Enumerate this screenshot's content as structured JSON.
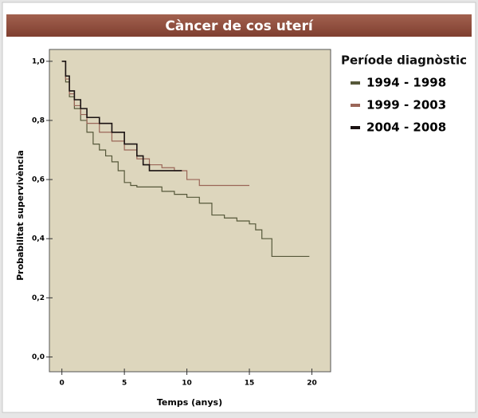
{
  "chart_data": {
    "type": "survival-step",
    "title": "Càncer de cos uterí",
    "xlabel": "Temps (anys)",
    "ylabel": "Probabilitat supervivència",
    "legend_title": "Període diagnòstic",
    "background": "#ddd6bd",
    "xlim": [
      -1,
      21.5
    ],
    "xticks": [
      0,
      5,
      10,
      15,
      20
    ],
    "ylim": [
      -0.05,
      1.04
    ],
    "yticks": [
      {
        "value": 0,
        "label": "0,0"
      },
      {
        "value": 0.2,
        "label": "0,2"
      },
      {
        "value": 0.4,
        "label": "0,4"
      },
      {
        "value": 0.6,
        "label": "0,6"
      },
      {
        "value": 0.8,
        "label": "0,8"
      },
      {
        "value": 1,
        "label": "1,0"
      }
    ],
    "series": [
      {
        "name": "1994 - 1998",
        "color": "#56583a",
        "x": [
          0,
          0.3,
          0.6,
          1,
          1.5,
          2,
          2.5,
          3,
          3.5,
          4,
          4.5,
          5,
          5.5,
          6,
          8,
          9,
          10,
          11,
          12,
          13,
          14,
          15,
          15.5,
          16,
          16.8,
          19.8
        ],
        "values": [
          1.0,
          0.93,
          0.88,
          0.84,
          0.8,
          0.76,
          0.72,
          0.7,
          0.68,
          0.66,
          0.63,
          0.59,
          0.58,
          0.575,
          0.56,
          0.55,
          0.54,
          0.52,
          0.48,
          0.47,
          0.46,
          0.45,
          0.43,
          0.4,
          0.34,
          0.34
        ]
      },
      {
        "name": "1999 - 2003",
        "color": "#9a6658",
        "x": [
          0,
          0.3,
          0.6,
          1,
          1.5,
          2,
          3,
          4,
          5,
          6,
          7,
          8,
          9,
          10,
          11,
          15
        ],
        "values": [
          1.0,
          0.94,
          0.89,
          0.85,
          0.82,
          0.79,
          0.76,
          0.73,
          0.7,
          0.67,
          0.65,
          0.64,
          0.63,
          0.6,
          0.58,
          0.58
        ]
      },
      {
        "name": "2004 - 2008",
        "color": "#1a1212",
        "x": [
          0,
          0.3,
          0.6,
          1,
          1.5,
          2,
          3,
          4,
          5,
          6,
          6.5,
          7,
          9.6
        ],
        "values": [
          1.0,
          0.95,
          0.9,
          0.87,
          0.84,
          0.81,
          0.79,
          0.76,
          0.72,
          0.68,
          0.65,
          0.63,
          0.63
        ]
      }
    ]
  }
}
